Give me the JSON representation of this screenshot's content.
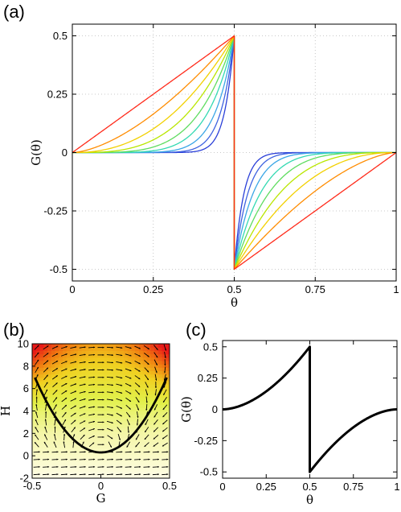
{
  "panels": {
    "a": {
      "label": "(a)"
    },
    "b": {
      "label": "(b)"
    },
    "c": {
      "label": "(c)"
    }
  },
  "chart_data": [
    {
      "id": "a",
      "type": "line",
      "xlabel": "θ",
      "ylabel": "G(θ)",
      "xlim": [
        0,
        1
      ],
      "ylim": [
        -0.55,
        0.55
      ],
      "xticks": [
        "0",
        "0.25",
        "0.5",
        "0.75",
        "1"
      ],
      "xtick_values": [
        0,
        0.25,
        0.5,
        0.75,
        1
      ],
      "yticks": [
        "-0.5",
        "-0.25",
        "0",
        "0.25",
        "0.5"
      ],
      "ytick_values": [
        -0.5,
        -0.25,
        0,
        0.25,
        0.5
      ],
      "grid": true,
      "series_description": "family of sawtooth-like curves G(θ)=±0.5·(θ/0.5)^p on each half, zero at 0, 0.5 jump, 1",
      "series_exponents": [
        1,
        1.6,
        2.3,
        3.2,
        4.4,
        6,
        8.5,
        12
      ],
      "series_colors": [
        "#ff2a1a",
        "#ff8c00",
        "#f2d000",
        "#b9e600",
        "#5fdc60",
        "#33d9b2",
        "#3aa6e6",
        "#3f63e0",
        "#2a3fd8"
      ],
      "series_exponents_full": [
        1,
        1.6,
        2.3,
        3.2,
        4.4,
        6,
        8.5,
        12,
        17
      ]
    },
    {
      "id": "b",
      "type": "heatmap",
      "xlabel": "G",
      "ylabel": "H",
      "xlim": [
        -0.5,
        0.5
      ],
      "ylim": [
        -2,
        10
      ],
      "xticks": [
        "-0.5",
        "0",
        "0.5"
      ],
      "xtick_values": [
        -0.5,
        0,
        0.5
      ],
      "yticks": [
        "-2",
        "0",
        "2",
        "4",
        "6",
        "8",
        "10"
      ],
      "ytick_values": [
        -2,
        0,
        2,
        4,
        6,
        8,
        10
      ],
      "curve": {
        "type": "parabola",
        "a": 29,
        "c": 0.3,
        "color": "#000000"
      },
      "colormap": [
        "#fffde0",
        "#f4f6a8",
        "#e2f04a",
        "#f0d020",
        "#f07a10",
        "#e81818"
      ]
    },
    {
      "id": "c",
      "type": "line",
      "xlabel": "θ",
      "ylabel": "G(θ)",
      "xlim": [
        0,
        1
      ],
      "ylim": [
        -0.55,
        0.55
      ],
      "xticks": [
        "0",
        "0.25",
        "0.5",
        "0.75",
        "1"
      ],
      "xtick_values": [
        0,
        0.25,
        0.5,
        0.75,
        1
      ],
      "yticks": [
        "-0.5",
        "-0.25",
        "0",
        "0.25",
        "0.5"
      ],
      "ytick_values": [
        -0.5,
        -0.25,
        0,
        0.25,
        0.5
      ],
      "grid": false,
      "series_exponent": 1.8,
      "series_color": "#000000"
    }
  ]
}
